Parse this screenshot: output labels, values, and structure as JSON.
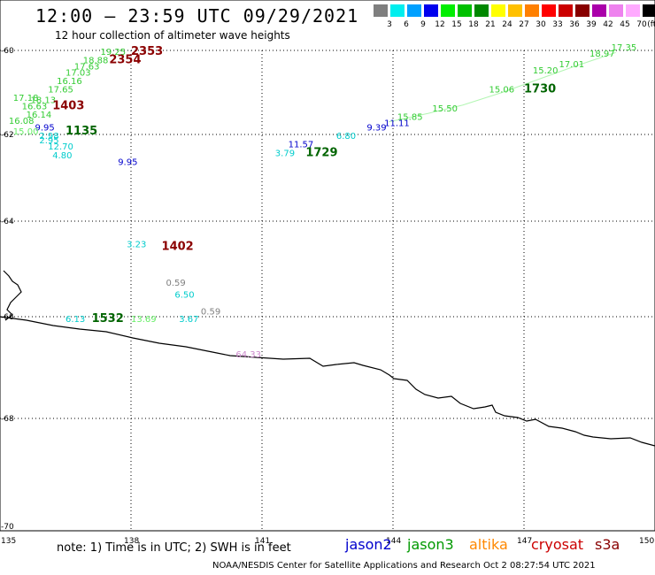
{
  "title": "12:00 – 23:59 UTC 09/29/2021",
  "subtitle": "12 hour collection of altimeter wave heights",
  "scale": {
    "labels": [
      "3",
      "6",
      "9",
      "12",
      "15",
      "18",
      "21",
      "24",
      "27",
      "30",
      "33",
      "36",
      "39",
      "42",
      "45",
      "70"
    ],
    "unit": "(ft)",
    "colors": [
      "#7f7f7f",
      "#00eeee",
      "#00a0ff",
      "#0000ee",
      "#00ee00",
      "#00c000",
      "#008800",
      "#ffff00",
      "#ffc000",
      "#ff8000",
      "#ff0000",
      "#cc0000",
      "#880000",
      "#aa00aa",
      "#ee82ee",
      "#ffaaff",
      "#000000"
    ]
  },
  "axes": {
    "lat_labels": [
      "-60",
      "-62",
      "-64",
      "-66",
      "-68",
      "-70"
    ],
    "lon_labels": [
      "135",
      "138",
      "141",
      "144",
      "147",
      "150"
    ]
  },
  "note": "note: 1) Time is in UTC; 2) SWH is in feet",
  "legend": [
    {
      "name": "jason2",
      "color": "#0000cc"
    },
    {
      "name": "jason3",
      "color": "#009900"
    },
    {
      "name": "altika",
      "color": "#ff8800"
    },
    {
      "name": "cryosat",
      "color": "#cc0000"
    },
    {
      "name": "s3a",
      "color": "#880000"
    }
  ],
  "credit": "NOAA/NESDIS Center for Satellite Applications and Research    Oct  2 08:27:54 UTC 2021",
  "map_data": {
    "times": [
      {
        "text": "2353",
        "color": "#8b0000",
        "lon": 138.0,
        "lat": -60.1
      },
      {
        "text": "2354",
        "color": "#8b0000",
        "lon": 137.5,
        "lat": -60.3
      },
      {
        "text": "1403",
        "color": "#8b0000",
        "lon": 136.2,
        "lat": -61.4
      },
      {
        "text": "1135",
        "color": "#006400",
        "lon": 136.5,
        "lat": -62.0
      },
      {
        "text": "1729",
        "color": "#006400",
        "lon": 142.0,
        "lat": -62.5
      },
      {
        "text": "1730",
        "color": "#006400",
        "lon": 147.0,
        "lat": -61.0
      },
      {
        "text": "1402",
        "color": "#8b0000",
        "lon": 138.7,
        "lat": -64.6
      },
      {
        "text": "1532",
        "color": "#006400",
        "lon": 137.1,
        "lat": -66.1
      }
    ],
    "values": [
      {
        "text": "19.25",
        "color": "#33cc33",
        "lon": 137.3,
        "lat": -60.1
      },
      {
        "text": "18.88",
        "color": "#33cc33",
        "lon": 136.9,
        "lat": -60.3
      },
      {
        "text": "17.63",
        "color": "#33cc33",
        "lon": 136.7,
        "lat": -60.45
      },
      {
        "text": "17.03",
        "color": "#33cc33",
        "lon": 136.5,
        "lat": -60.6
      },
      {
        "text": "16.16",
        "color": "#33cc33",
        "lon": 136.3,
        "lat": -60.8
      },
      {
        "text": "17.65",
        "color": "#33cc33",
        "lon": 136.1,
        "lat": -61.0
      },
      {
        "text": "17.18",
        "color": "#33cc33",
        "lon": 135.3,
        "lat": -61.2
      },
      {
        "text": "18.13",
        "color": "#33cc33",
        "lon": 135.7,
        "lat": -61.25
      },
      {
        "text": "16.63",
        "color": "#33cc33",
        "lon": 135.5,
        "lat": -61.4
      },
      {
        "text": "16.14",
        "color": "#33cc33",
        "lon": 135.6,
        "lat": -61.6
      },
      {
        "text": "16.08",
        "color": "#33cc33",
        "lon": 135.2,
        "lat": -61.75
      },
      {
        "text": "9.95",
        "color": "#0000cc",
        "lon": 135.8,
        "lat": -61.9
      },
      {
        "text": "15.00",
        "color": "#66ee66",
        "lon": 135.3,
        "lat": -62.0
      },
      {
        "text": "2.98",
        "color": "#00cccc",
        "lon": 135.9,
        "lat": -62.1
      },
      {
        "text": "2.95",
        "color": "#00cccc",
        "lon": 135.9,
        "lat": -62.2
      },
      {
        "text": "12.70",
        "color": "#00cccc",
        "lon": 136.1,
        "lat": -62.35
      },
      {
        "text": "4.80",
        "color": "#00cccc",
        "lon": 136.2,
        "lat": -62.55
      },
      {
        "text": "9.95",
        "color": "#0000cc",
        "lon": 137.7,
        "lat": -62.7
      },
      {
        "text": "3.79",
        "color": "#00cccc",
        "lon": 141.3,
        "lat": -62.5
      },
      {
        "text": "11.57",
        "color": "#0000cc",
        "lon": 141.6,
        "lat": -62.3
      },
      {
        "text": "6.80",
        "color": "#00cccc",
        "lon": 142.7,
        "lat": -62.1
      },
      {
        "text": "9.39",
        "color": "#0000cc",
        "lon": 143.4,
        "lat": -61.9
      },
      {
        "text": "11.11",
        "color": "#0000cc",
        "lon": 143.8,
        "lat": -61.8
      },
      {
        "text": "15.85",
        "color": "#33cc33",
        "lon": 144.1,
        "lat": -61.65
      },
      {
        "text": "15.50",
        "color": "#33cc33",
        "lon": 144.9,
        "lat": -61.45
      },
      {
        "text": "15.06",
        "color": "#33cc33",
        "lon": 146.2,
        "lat": -61.0
      },
      {
        "text": "15.20",
        "color": "#33cc33",
        "lon": 147.2,
        "lat": -60.55
      },
      {
        "text": "17.01",
        "color": "#33cc33",
        "lon": 147.8,
        "lat": -60.4
      },
      {
        "text": "17.35",
        "color": "#33cc33",
        "lon": 149.0,
        "lat": -60.0
      },
      {
        "text": "18.97",
        "color": "#33cc33",
        "lon": 148.5,
        "lat": -60.15
      },
      {
        "text": "3.23",
        "color": "#00cccc",
        "lon": 137.9,
        "lat": -64.55
      },
      {
        "text": "0.59",
        "color": "#808080",
        "lon": 138.8,
        "lat": -65.35
      },
      {
        "text": "6.50",
        "color": "#00cccc",
        "lon": 139.0,
        "lat": -65.6
      },
      {
        "text": "0.59",
        "color": "#808080",
        "lon": 139.6,
        "lat": -65.95
      },
      {
        "text": "3.67",
        "color": "#00cccc",
        "lon": 139.1,
        "lat": -66.1
      },
      {
        "text": "6.13",
        "color": "#00cccc",
        "lon": 136.5,
        "lat": -66.1
      },
      {
        "text": "13.69",
        "color": "#66ee66",
        "lon": 138.0,
        "lat": -66.1
      },
      {
        "text": "64.33",
        "color": "#cc88cc",
        "lon": 140.4,
        "lat": -66.8
      }
    ],
    "tracks": [
      {
        "color": "#66ee66",
        "points": [
          [
            143.9,
            -61.7
          ],
          [
            144.8,
            -61.5
          ],
          [
            145.6,
            -61.3
          ],
          [
            146.5,
            -61.0
          ],
          [
            147.3,
            -60.7
          ],
          [
            148.1,
            -60.4
          ],
          [
            149.1,
            -60.05
          ]
        ]
      }
    ]
  }
}
